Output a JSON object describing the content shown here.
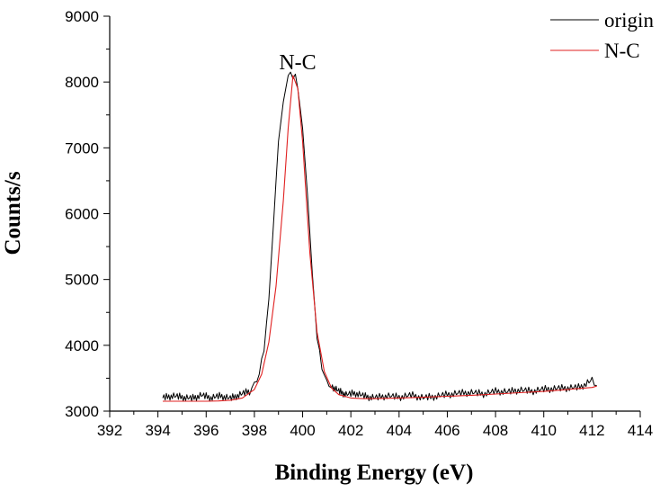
{
  "chart_data": {
    "type": "line",
    "title": "",
    "xlabel": "Binding Energy (eV)",
    "ylabel": "Counts/s",
    "xlim": [
      392,
      414
    ],
    "ylim": [
      3000,
      9000
    ],
    "x_ticks": [
      392,
      394,
      396,
      398,
      400,
      402,
      404,
      406,
      408,
      410,
      412,
      414
    ],
    "y_ticks": [
      3000,
      4000,
      5000,
      6000,
      7000,
      8000,
      9000
    ],
    "grid": false,
    "legend_position": "top-right",
    "annotations": [
      {
        "text": "N-C",
        "x": 399.6,
        "y": 8250
      }
    ],
    "series": [
      {
        "name": "origin",
        "color": "#000000",
        "x": [
          394.2,
          394.6,
          395.0,
          395.4,
          395.8,
          396.2,
          396.6,
          397.0,
          397.4,
          397.8,
          398.0,
          398.2,
          398.4,
          398.6,
          398.8,
          399.0,
          399.2,
          399.4,
          399.5,
          399.6,
          399.7,
          399.8,
          400.0,
          400.2,
          400.4,
          400.6,
          400.8,
          401.0,
          401.2,
          401.5,
          401.8,
          402.2,
          402.6,
          403.0,
          403.5,
          404.0,
          404.5,
          405.0,
          405.5,
          406.0,
          406.5,
          407.0,
          407.5,
          408.0,
          408.5,
          409.0,
          409.5,
          410.0,
          410.5,
          411.0,
          411.5,
          412.0,
          412.2
        ],
        "y": [
          3200,
          3230,
          3210,
          3190,
          3240,
          3200,
          3230,
          3190,
          3250,
          3300,
          3380,
          3560,
          3950,
          4700,
          5900,
          7100,
          7700,
          8100,
          8150,
          8050,
          8120,
          7900,
          7300,
          6300,
          5100,
          4100,
          3650,
          3450,
          3380,
          3300,
          3250,
          3270,
          3220,
          3200,
          3230,
          3210,
          3240,
          3200,
          3220,
          3250,
          3270,
          3280,
          3260,
          3300,
          3290,
          3320,
          3300,
          3330,
          3340,
          3350,
          3360,
          3470,
          3390
        ]
      },
      {
        "name": "N-C",
        "color": "#e02020",
        "x": [
          394.2,
          395.0,
          396.0,
          396.5,
          397.0,
          397.5,
          398.0,
          398.3,
          398.6,
          398.9,
          399.2,
          399.4,
          399.6,
          399.8,
          400.0,
          400.3,
          400.6,
          400.9,
          401.2,
          401.5,
          402.0,
          402.5,
          403.0,
          404.0,
          405.0,
          406.0,
          407.0,
          408.0,
          409.0,
          410.0,
          411.0,
          412.0,
          412.2
        ],
        "y": [
          3150,
          3150,
          3150,
          3155,
          3165,
          3200,
          3330,
          3560,
          4050,
          4900,
          6200,
          7300,
          8100,
          7900,
          7100,
          5400,
          4200,
          3600,
          3350,
          3250,
          3200,
          3190,
          3190,
          3200,
          3210,
          3225,
          3240,
          3260,
          3280,
          3300,
          3330,
          3360,
          3380
        ]
      }
    ]
  }
}
